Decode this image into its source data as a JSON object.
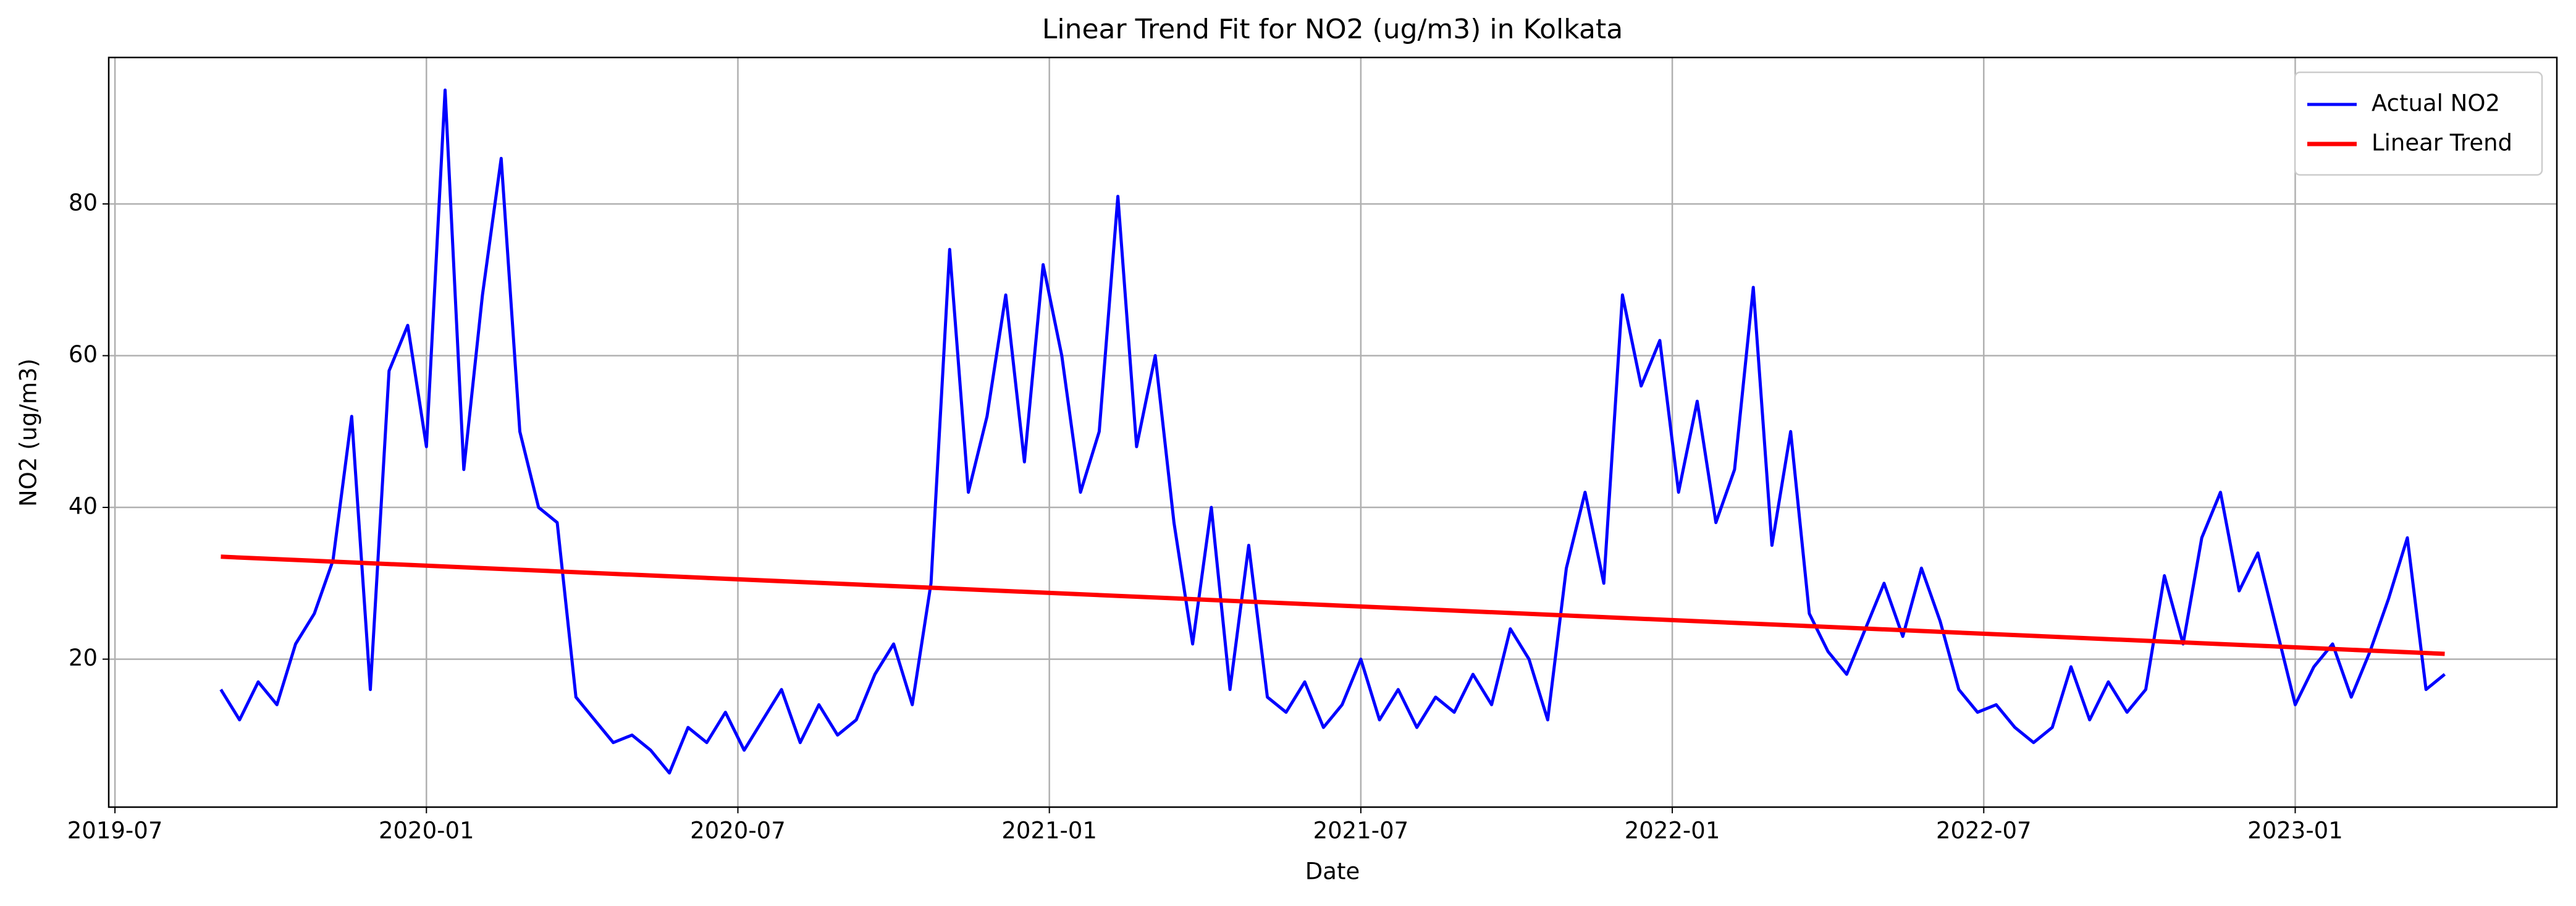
{
  "chart_data": {
    "type": "line",
    "title": "Linear Trend Fit for NO2 (ug/m3) in Kolkata",
    "xlabel": "Date",
    "ylabel": "NO2 (ug/m3)",
    "x": [
      2019.67,
      2019.7,
      2019.73,
      2019.76,
      2019.79,
      2019.82,
      2019.85,
      2019.88,
      2019.91,
      2019.94,
      2019.97,
      2020.0,
      2020.03,
      2020.06,
      2020.09,
      2020.12,
      2020.15,
      2020.18,
      2020.21,
      2020.24,
      2020.27,
      2020.3,
      2020.33,
      2020.36,
      2020.39,
      2020.42,
      2020.45,
      2020.48,
      2020.51,
      2020.54,
      2020.57,
      2020.6,
      2020.63,
      2020.66,
      2020.69,
      2020.72,
      2020.75,
      2020.78,
      2020.81,
      2020.84,
      2020.87,
      2020.9,
      2020.93,
      2020.96,
      2020.99,
      2021.02,
      2021.05,
      2021.08,
      2021.11,
      2021.14,
      2021.17,
      2021.2,
      2021.23,
      2021.26,
      2021.29,
      2021.32,
      2021.35,
      2021.38,
      2021.41,
      2021.44,
      2021.47,
      2021.5,
      2021.53,
      2021.56,
      2021.59,
      2021.62,
      2021.65,
      2021.68,
      2021.71,
      2021.74,
      2021.77,
      2021.8,
      2021.83,
      2021.86,
      2021.89,
      2021.92,
      2021.95,
      2021.98,
      2022.01,
      2022.04,
      2022.07,
      2022.1,
      2022.13,
      2022.16,
      2022.19,
      2022.22,
      2022.25,
      2022.28,
      2022.31,
      2022.34,
      2022.37,
      2022.4,
      2022.43,
      2022.46,
      2022.49,
      2022.52,
      2022.55,
      2022.58,
      2022.61,
      2022.64,
      2022.67,
      2022.7,
      2022.73,
      2022.76,
      2022.79,
      2022.82,
      2022.85,
      2022.88,
      2022.91,
      2022.94,
      2022.97,
      2023.0,
      2023.03,
      2023.06,
      2023.09,
      2023.12,
      2023.15,
      2023.18,
      2023.21,
      2023.24
    ],
    "series": [
      {
        "name": "Actual NO2",
        "color": "#0000ff",
        "values": [
          16,
          12,
          17,
          14,
          22,
          26,
          33,
          52,
          16,
          58,
          64,
          48,
          95,
          45,
          68,
          86,
          50,
          40,
          38,
          15,
          12,
          9,
          10,
          8,
          5,
          11,
          9,
          13,
          8,
          12,
          16,
          9,
          14,
          10,
          12,
          18,
          22,
          14,
          30,
          74,
          42,
          52,
          68,
          46,
          72,
          60,
          42,
          50,
          81,
          48,
          60,
          38,
          22,
          40,
          16,
          35,
          15,
          13,
          17,
          11,
          14,
          20,
          12,
          16,
          11,
          15,
          13,
          18,
          14,
          24,
          20,
          12,
          32,
          42,
          30,
          68,
          56,
          62,
          42,
          54,
          38,
          45,
          69,
          35,
          50,
          26,
          21,
          18,
          24,
          30,
          23,
          32,
          25,
          16,
          13,
          14,
          11,
          9,
          11,
          19,
          12,
          17,
          13,
          16,
          31,
          22,
          36,
          42,
          29,
          34,
          24,
          14,
          19,
          22,
          15,
          21,
          28,
          36,
          16,
          18
        ]
      },
      {
        "name": "Linear Trend",
        "color": "#ff0000",
        "x": [
          2019.67,
          2023.24
        ],
        "values": [
          33.5,
          20.7
        ]
      }
    ],
    "xlim": [
      2019.49,
      2023.42
    ],
    "xticks": [
      {
        "value": 2019.5,
        "label": "2019-07"
      },
      {
        "value": 2020.0,
        "label": "2020-01"
      },
      {
        "value": 2020.5,
        "label": "2020-07"
      },
      {
        "value": 2021.0,
        "label": "2021-01"
      },
      {
        "value": 2021.5,
        "label": "2021-07"
      },
      {
        "value": 2022.0,
        "label": "2022-01"
      },
      {
        "value": 2022.5,
        "label": "2022-07"
      },
      {
        "value": 2023.0,
        "label": "2023-01"
      }
    ],
    "ylim": [
      0.5,
      99.3
    ],
    "yticks": [
      20,
      40,
      60,
      80
    ],
    "grid": true,
    "legend": "upper right"
  }
}
